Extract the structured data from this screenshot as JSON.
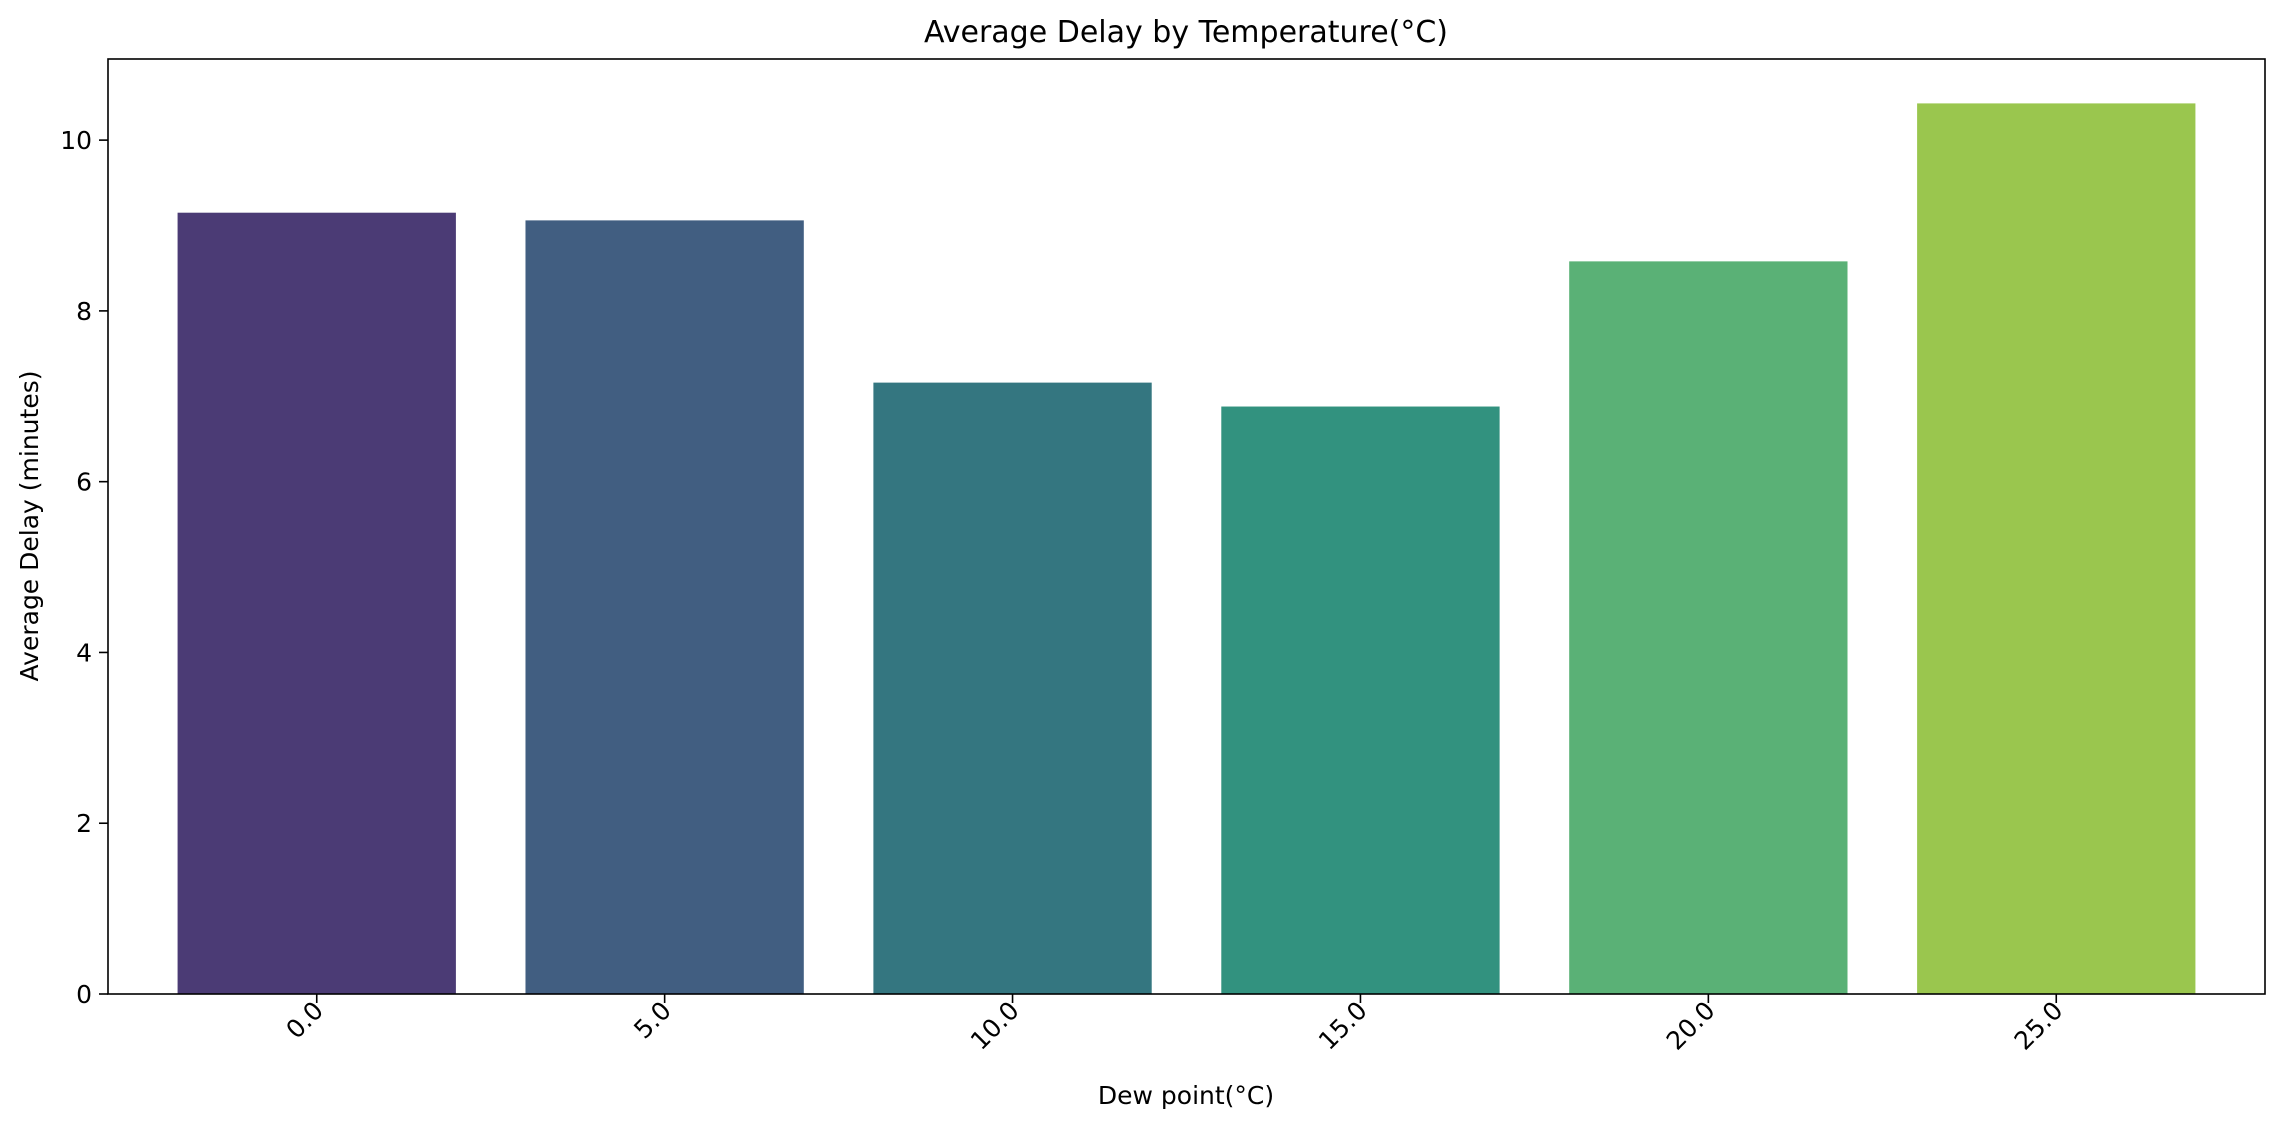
{
  "chart_data": {
    "type": "bar",
    "title": "Average Delay by Temperature(°C)",
    "xlabel": "Dew point(°C)",
    "ylabel": "Average Delay (minutes)",
    "categories": [
      "0.0",
      "5.0",
      "10.0",
      "15.0",
      "20.0",
      "25.0"
    ],
    "values": [
      9.15,
      9.06,
      7.16,
      6.88,
      8.58,
      10.43
    ],
    "colors": [
      "#4b3b75",
      "#415e81",
      "#347680",
      "#32927f",
      "#5ab176",
      "#9ac64e"
    ],
    "yticks": [
      0,
      2,
      4,
      6,
      8,
      10
    ],
    "ylim": [
      0,
      10.95
    ],
    "grid": false,
    "legend": "none"
  }
}
